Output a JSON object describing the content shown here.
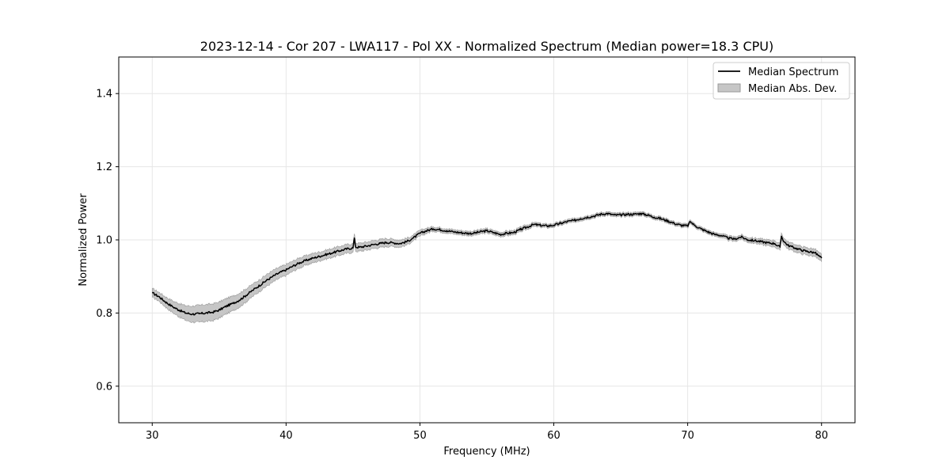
{
  "chart_data": {
    "type": "line",
    "title": "2023-12-14 - Cor 207 - LWA117 - Pol XX - Normalized Spectrum (Median power=18.3 CPU)",
    "xlabel": "Frequency (MHz)",
    "ylabel": "Normalized Power",
    "xlim": [
      27.5,
      82.5
    ],
    "ylim": [
      0.5,
      1.5
    ],
    "x_ticks": [
      30,
      40,
      50,
      60,
      70,
      80
    ],
    "y_ticks": [
      0.6,
      0.8,
      1.0,
      1.2,
      1.4
    ],
    "x_tick_labels": [
      "30",
      "40",
      "50",
      "60",
      "70",
      "80"
    ],
    "y_tick_labels": [
      "0.6",
      "0.8",
      "1.0",
      "1.2",
      "1.4"
    ],
    "grid": true,
    "legend_position": "top-right",
    "colors": {
      "line": "#000000",
      "band": "#c6c6c6",
      "band_edge": "#999999",
      "grid": "#e6e6e6"
    },
    "series": [
      {
        "name": "Median Spectrum",
        "x": [
          30,
          30.5,
          31,
          31.5,
          32,
          32.5,
          33,
          33.5,
          34,
          34.5,
          35,
          35.5,
          36,
          36.5,
          37,
          37.5,
          38,
          38.5,
          39,
          39.5,
          40,
          40.5,
          41,
          41.5,
          42,
          42.5,
          43,
          43.5,
          44,
          44.5,
          45,
          45.1,
          45.2,
          45.5,
          46,
          46.5,
          47,
          47.5,
          48,
          48.5,
          49,
          49.5,
          50,
          50.5,
          51,
          51.5,
          52,
          52.5,
          53,
          53.5,
          54,
          54.5,
          55,
          55.5,
          56,
          56.5,
          57,
          57.5,
          58,
          58.5,
          59,
          59.5,
          60,
          60.5,
          61,
          61.5,
          62,
          62.5,
          63,
          63.5,
          64,
          64.5,
          65,
          65.5,
          66,
          66.5,
          67,
          67.5,
          68,
          68.5,
          69,
          69.5,
          70,
          70.2,
          70.5,
          71,
          71.5,
          72,
          72.5,
          73,
          73.5,
          74,
          74.5,
          75,
          75.5,
          76,
          76.5,
          76.9,
          77,
          77.2,
          77.5,
          78,
          78.5,
          79,
          79.5,
          80
        ],
        "values": [
          0.855,
          0.845,
          0.83,
          0.818,
          0.808,
          0.8,
          0.797,
          0.798,
          0.8,
          0.802,
          0.808,
          0.818,
          0.826,
          0.835,
          0.848,
          0.862,
          0.875,
          0.888,
          0.9,
          0.91,
          0.918,
          0.928,
          0.937,
          0.944,
          0.95,
          0.955,
          0.96,
          0.965,
          0.97,
          0.975,
          0.978,
          1.005,
          0.98,
          0.98,
          0.983,
          0.987,
          0.99,
          0.993,
          0.992,
          0.99,
          0.995,
          1.005,
          1.018,
          1.025,
          1.03,
          1.028,
          1.025,
          1.022,
          1.02,
          1.018,
          1.018,
          1.022,
          1.025,
          1.02,
          1.015,
          1.018,
          1.02,
          1.028,
          1.035,
          1.042,
          1.04,
          1.038,
          1.04,
          1.045,
          1.05,
          1.053,
          1.058,
          1.062,
          1.065,
          1.07,
          1.072,
          1.068,
          1.068,
          1.07,
          1.07,
          1.072,
          1.068,
          1.062,
          1.058,
          1.052,
          1.045,
          1.04,
          1.038,
          1.05,
          1.04,
          1.03,
          1.022,
          1.015,
          1.012,
          1.005,
          1.002,
          1.008,
          1.0,
          0.998,
          0.995,
          0.992,
          0.99,
          0.98,
          1.01,
          0.995,
          0.985,
          0.978,
          0.972,
          0.968,
          0.965,
          0.95
        ]
      },
      {
        "name": "Median Abs. Dev.",
        "x": [
          30,
          30.5,
          31,
          31.5,
          32,
          32.5,
          33,
          33.5,
          34,
          34.5,
          35,
          35.5,
          36,
          36.5,
          37,
          37.5,
          38,
          38.5,
          39,
          39.5,
          40,
          40.5,
          41,
          41.5,
          42,
          42.5,
          43,
          43.5,
          44,
          44.5,
          45,
          45.5,
          46,
          46.5,
          47,
          47.5,
          48,
          48.5,
          49,
          49.5,
          50,
          50.5,
          51,
          52,
          53,
          54,
          55,
          56,
          57,
          58,
          59,
          60,
          61,
          62,
          63,
          64,
          65,
          66,
          67,
          68,
          69,
          70,
          71,
          72,
          73,
          74,
          75,
          76,
          77,
          78,
          79,
          80
        ],
        "values": [
          0.012,
          0.012,
          0.014,
          0.016,
          0.018,
          0.02,
          0.022,
          0.023,
          0.023,
          0.023,
          0.022,
          0.021,
          0.02,
          0.019,
          0.018,
          0.017,
          0.016,
          0.016,
          0.016,
          0.015,
          0.015,
          0.014,
          0.014,
          0.013,
          0.013,
          0.012,
          0.012,
          0.012,
          0.012,
          0.012,
          0.012,
          0.011,
          0.011,
          0.011,
          0.011,
          0.011,
          0.01,
          0.01,
          0.009,
          0.008,
          0.008,
          0.007,
          0.006,
          0.006,
          0.006,
          0.006,
          0.006,
          0.006,
          0.006,
          0.006,
          0.005,
          0.005,
          0.005,
          0.005,
          0.005,
          0.005,
          0.005,
          0.005,
          0.005,
          0.005,
          0.005,
          0.005,
          0.005,
          0.005,
          0.006,
          0.006,
          0.007,
          0.008,
          0.009,
          0.01,
          0.01,
          0.01
        ]
      }
    ]
  }
}
